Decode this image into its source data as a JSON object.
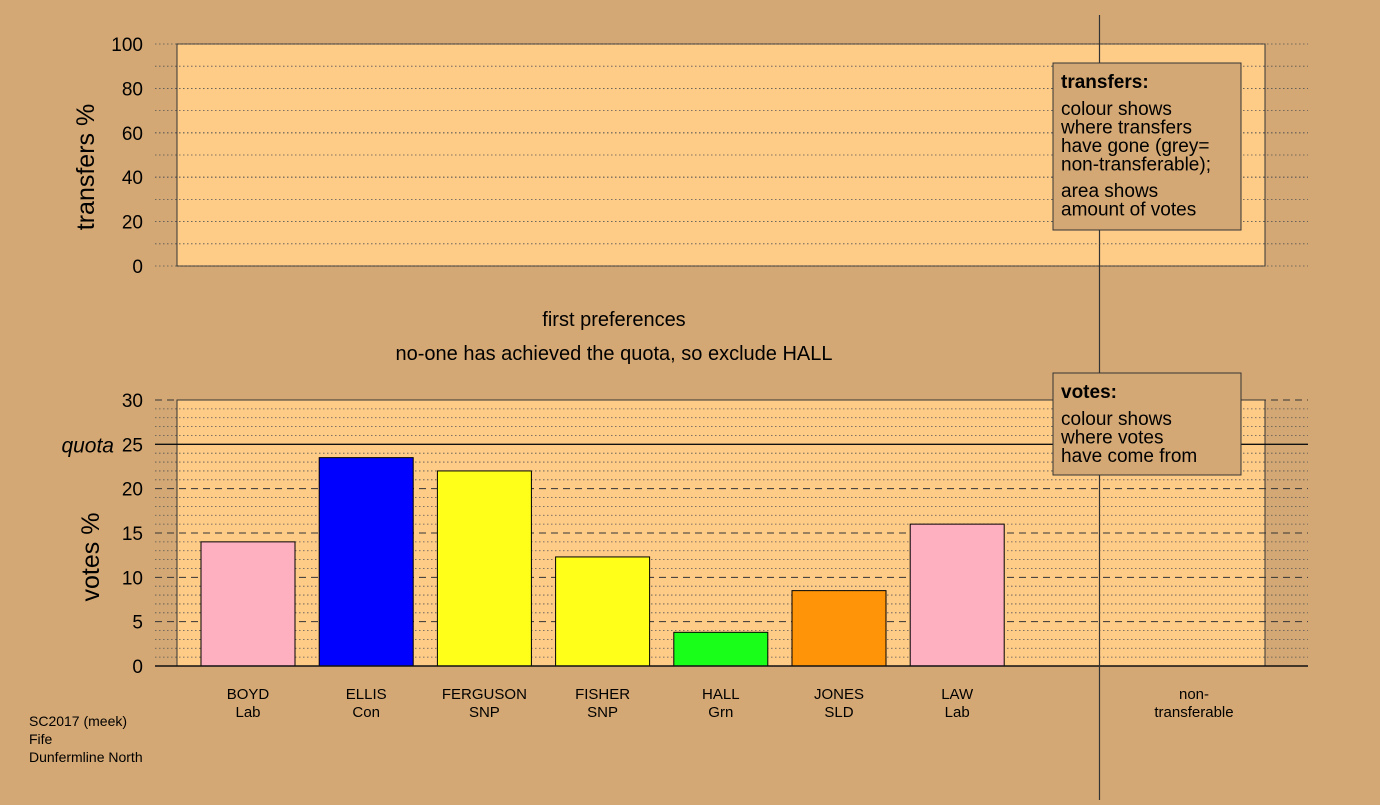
{
  "chart_data": [
    {
      "type": "bar",
      "panel": "transfers",
      "ylabel": "transfers %",
      "ylim": [
        0,
        100
      ],
      "yticks": [
        0,
        20,
        40,
        60,
        80,
        100
      ],
      "grid": true,
      "series": [],
      "legend_box": {
        "title": "transfers:",
        "lines": [
          "colour shows",
          "where transfers",
          "have gone (grey=",
          "non-transferable);"
        ],
        "lines2": [
          "area shows",
          "amount of votes"
        ]
      }
    },
    {
      "type": "bar",
      "panel": "votes",
      "ylabel": "votes %",
      "ylim": [
        0,
        30
      ],
      "yticks": [
        0,
        5,
        10,
        15,
        20,
        25,
        30
      ],
      "grid": true,
      "quota_label": "quota",
      "quota": 25,
      "candidates": [
        {
          "name": "BOYD",
          "party": "Lab",
          "value": 14.0,
          "color": "#ffb0c0"
        },
        {
          "name": "ELLIS",
          "party": "Con",
          "value": 23.5,
          "color": "#0000ff"
        },
        {
          "name": "FERGUSON",
          "party": "SNP",
          "value": 22.0,
          "color": "#ffff1a"
        },
        {
          "name": "FISHER",
          "party": "SNP",
          "value": 12.3,
          "color": "#ffff1a"
        },
        {
          "name": "HALL",
          "party": "Grn",
          "value": 3.8,
          "color": "#1aff1a"
        },
        {
          "name": "JONES",
          "party": "SLD",
          "value": 8.5,
          "color": "#ff9408"
        },
        {
          "name": "LAW",
          "party": "Lab",
          "value": 16.0,
          "color": "#ffb0c0"
        }
      ],
      "nontransferable_label": [
        "non-",
        "transferable"
      ],
      "legend_box": {
        "title": "votes:",
        "lines": [
          "colour shows",
          "where votes",
          "have come from"
        ]
      }
    }
  ],
  "stage_title": "first preferences",
  "stage_subtitle": "no-one has achieved the quota, so exclude HALL",
  "footer": {
    "line1": "SC2017 (meek)",
    "line2": "Fife",
    "line3": "Dunfermline North"
  },
  "colors": {
    "background": "#d4a874",
    "plot_area": "#ffcc88",
    "legend_box": "#d4a874"
  }
}
